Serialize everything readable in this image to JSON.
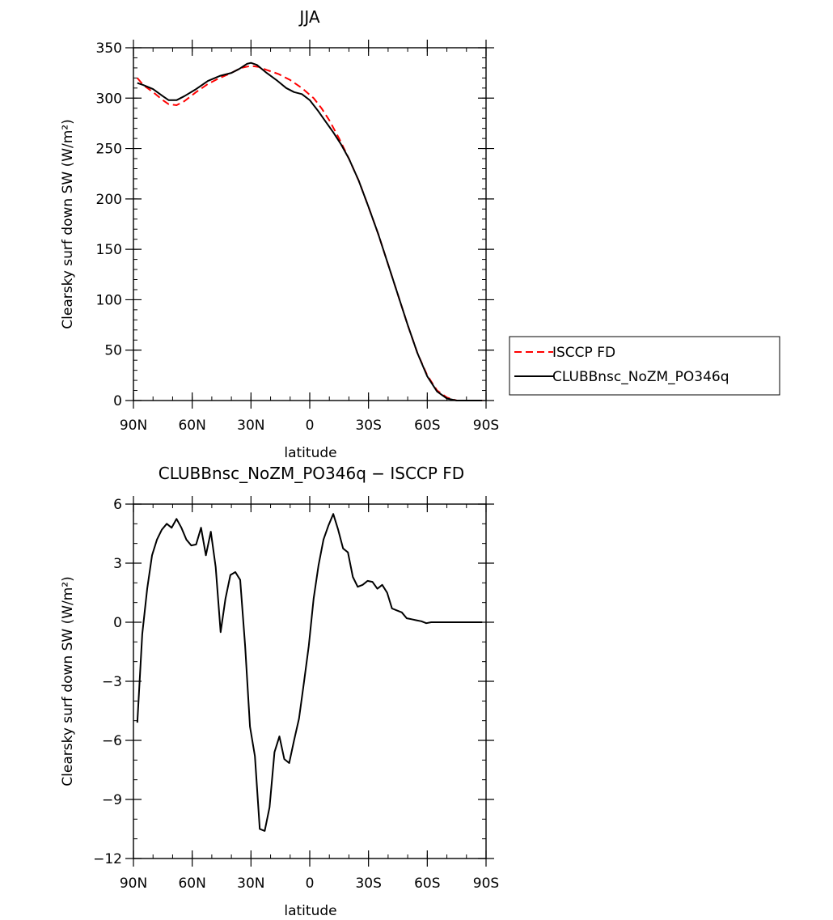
{
  "chart_data": [
    {
      "type": "line",
      "title": "JJA",
      "xlabel": "latitude",
      "ylabel": "Clearsky surf down SW (W/m²)",
      "xlim": [
        90,
        -90
      ],
      "ylim": [
        0,
        350
      ],
      "x_tick_values": [
        90,
        60,
        30,
        0,
        -30,
        -60,
        -90
      ],
      "x_tick_labels": [
        "90N",
        "60N",
        "30N",
        "0",
        "30S",
        "60S",
        "90S"
      ],
      "y_tick_values": [
        0,
        50,
        100,
        150,
        200,
        250,
        300,
        350
      ],
      "y_tick_labels": [
        "0",
        "50",
        "100",
        "150",
        "200",
        "250",
        "300",
        "350"
      ],
      "legend_position": "right",
      "series": [
        {
          "name": "ISCCP FD",
          "color": "#ff0000",
          "dash": "dashed",
          "points": [
            [
              88,
              320
            ],
            [
              85,
              313
            ],
            [
              80,
              306
            ],
            [
              75,
              298
            ],
            [
              72,
              294
            ],
            [
              68,
              293
            ],
            [
              64,
              297
            ],
            [
              58,
              306
            ],
            [
              52,
              314
            ],
            [
              46,
              320
            ],
            [
              40,
              325
            ],
            [
              35,
              330
            ],
            [
              30,
              332
            ],
            [
              26,
              331
            ],
            [
              22,
              328
            ],
            [
              16,
              324
            ],
            [
              10,
              318
            ],
            [
              4,
              310
            ],
            [
              -2,
              300
            ],
            [
              -6,
              290
            ],
            [
              -10,
              278
            ],
            [
              -15,
              260
            ],
            [
              -20,
              240
            ],
            [
              -25,
              218
            ],
            [
              -30,
              192
            ],
            [
              -35,
              165
            ],
            [
              -40,
              135
            ],
            [
              -45,
              105
            ],
            [
              -50,
              75
            ],
            [
              -55,
              47
            ],
            [
              -60,
              25
            ],
            [
              -65,
              10
            ],
            [
              -70,
              3
            ],
            [
              -75,
              0
            ],
            [
              -80,
              0
            ],
            [
              -85,
              0
            ],
            [
              -88,
              0
            ]
          ]
        },
        {
          "name": "CLUBBnsc_NoZM_PO346q",
          "color": "#000000",
          "dash": "solid",
          "points": [
            [
              88,
              315
            ],
            [
              85,
              313
            ],
            [
              80,
              309
            ],
            [
              75,
              302
            ],
            [
              72,
              298
            ],
            [
              68,
              298
            ],
            [
              64,
              302
            ],
            [
              58,
              309
            ],
            [
              52,
              317
            ],
            [
              46,
              322
            ],
            [
              40,
              325
            ],
            [
              36,
              329
            ],
            [
              32,
              334
            ],
            [
              30,
              335
            ],
            [
              27,
              333
            ],
            [
              22,
              325
            ],
            [
              17,
              318
            ],
            [
              12,
              310
            ],
            [
              8,
              306
            ],
            [
              4,
              304
            ],
            [
              0,
              298
            ],
            [
              -4,
              288
            ],
            [
              -8,
              277
            ],
            [
              -12,
              266
            ],
            [
              -16,
              254
            ],
            [
              -20,
              240
            ],
            [
              -25,
              218
            ],
            [
              -30,
              192
            ],
            [
              -35,
              165
            ],
            [
              -40,
              135
            ],
            [
              -45,
              105
            ],
            [
              -50,
              75
            ],
            [
              -55,
              47
            ],
            [
              -60,
              24
            ],
            [
              -65,
              9
            ],
            [
              -70,
              2
            ],
            [
              -75,
              0
            ],
            [
              -80,
              0
            ],
            [
              -85,
              0
            ],
            [
              -88,
              0
            ]
          ]
        }
      ]
    },
    {
      "type": "line",
      "title": "CLUBBnsc_NoZM_PO346q − ISCCP FD",
      "xlabel": "latitude",
      "ylabel": "Clearsky surf down SW (W/m²)",
      "xlim": [
        90,
        -90
      ],
      "ylim": [
        -12,
        6
      ],
      "x_tick_values": [
        90,
        60,
        30,
        0,
        -30,
        -60,
        -90
      ],
      "x_tick_labels": [
        "90N",
        "60N",
        "30N",
        "0",
        "30S",
        "60S",
        "90S"
      ],
      "y_tick_values": [
        -12,
        -9,
        -6,
        -3,
        0,
        3,
        6
      ],
      "y_tick_labels": [
        "−12",
        "−9",
        "−6",
        "−3",
        "0",
        "3",
        "6"
      ],
      "series": [
        {
          "color": "#000000",
          "dash": "solid",
          "points": [
            [
              88,
              -5.1
            ],
            [
              85.5,
              -0.6
            ],
            [
              83,
              1.7
            ],
            [
              80.5,
              3.4
            ],
            [
              78,
              4.2
            ],
            [
              75.5,
              4.7
            ],
            [
              73,
              5.0
            ],
            [
              70.5,
              4.8
            ],
            [
              68,
              5.25
            ],
            [
              65.5,
              4.8
            ],
            [
              63,
              4.2
            ],
            [
              60.5,
              3.9
            ],
            [
              58,
              3.95
            ],
            [
              55.5,
              4.8
            ],
            [
              53,
              3.4
            ],
            [
              50.5,
              4.6
            ],
            [
              48,
              2.8
            ],
            [
              45.5,
              -0.5
            ],
            [
              43,
              1.2
            ],
            [
              40.5,
              2.4
            ],
            [
              38,
              2.55
            ],
            [
              35.5,
              2.15
            ],
            [
              33,
              -1.2
            ],
            [
              30.5,
              -5.3
            ],
            [
              28,
              -6.8
            ],
            [
              25.5,
              -10.5
            ],
            [
              23,
              -10.6
            ],
            [
              20.5,
              -9.4
            ],
            [
              18,
              -6.6
            ],
            [
              15.5,
              -5.8
            ],
            [
              13,
              -6.95
            ],
            [
              10.5,
              -7.15
            ],
            [
              8,
              -6.0
            ],
            [
              5.5,
              -4.9
            ],
            [
              3,
              -3.1
            ],
            [
              0.5,
              -1.2
            ],
            [
              -2,
              1.2
            ],
            [
              -4.5,
              2.9
            ],
            [
              -7,
              4.2
            ],
            [
              -9.5,
              4.9
            ],
            [
              -12,
              5.5
            ],
            [
              -14.5,
              4.7
            ],
            [
              -17,
              3.75
            ],
            [
              -19.5,
              3.55
            ],
            [
              -22,
              2.3
            ],
            [
              -24.5,
              1.8
            ],
            [
              -27,
              1.9
            ],
            [
              -29.5,
              2.1
            ],
            [
              -32,
              2.05
            ],
            [
              -34.5,
              1.7
            ],
            [
              -37,
              1.9
            ],
            [
              -39.5,
              1.5
            ],
            [
              -42,
              0.7
            ],
            [
              -44.5,
              0.6
            ],
            [
              -47,
              0.5
            ],
            [
              -49.5,
              0.2
            ],
            [
              -52,
              0.15
            ],
            [
              -54.5,
              0.1
            ],
            [
              -57,
              0.05
            ],
            [
              -59.5,
              -0.05
            ],
            [
              -62,
              0.0
            ],
            [
              -64.5,
              0.0
            ],
            [
              -67,
              0.0
            ],
            [
              -69.5,
              0.0
            ],
            [
              -72,
              0.0
            ],
            [
              -74.5,
              0.0
            ],
            [
              -77,
              0.0
            ],
            [
              -79.5,
              0.0
            ],
            [
              -82,
              0.0
            ],
            [
              -84.5,
              0.0
            ],
            [
              -87,
              0.0
            ],
            [
              -88,
              0.0
            ]
          ]
        }
      ]
    }
  ]
}
